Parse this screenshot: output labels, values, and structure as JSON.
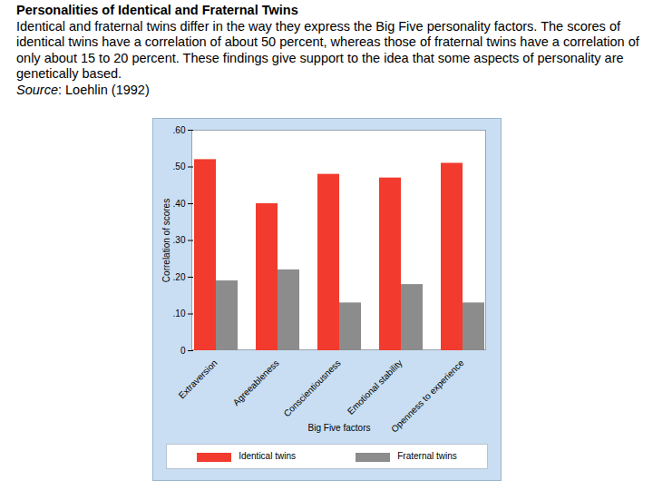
{
  "chart_data": {
    "type": "bar",
    "title": "Personalities of Identical and Fraternal Twins",
    "subtitle": "Identical and fraternal twins differ in the way they express the Big Five personality factors. The scores of identical twins have a correlation of about 50 percent, whereas those of fraternal twins have a correlation of only about 15 to 20 percent. These findings give support to the idea that some aspects of personality are genetically based.",
    "caption": "Source: Loehlin (1992)",
    "x_label": "Big Five factors",
    "y_label": "Correlation of scores",
    "categories": [
      "Extraversion",
      "Agreeableness",
      "Conscientiousness",
      "Emotional stability",
      "Openness to experience"
    ],
    "series": [
      {
        "name": "Identical twins",
        "color": "#f23b2e",
        "values": [
          0.52,
          0.4,
          0.48,
          0.47,
          0.51
        ]
      },
      {
        "name": "Fraternal twins",
        "color": "#8c8c8c",
        "values": [
          0.19,
          0.22,
          0.13,
          0.18,
          0.13
        ]
      }
    ],
    "ylim": [
      0,
      0.6
    ],
    "yticks": [
      0,
      {
        "value": 0.1,
        "label": ".10"
      },
      {
        "value": 0.2,
        "label": ".20"
      },
      {
        "value": 0.3,
        "label": ".30"
      },
      {
        "value": 0.4,
        "label": ".40"
      },
      {
        "value": 0.5,
        "label": ".50"
      },
      {
        "value": 0.6,
        "label": ".60"
      }
    ],
    "grid": false,
    "legend": "bottom"
  }
}
